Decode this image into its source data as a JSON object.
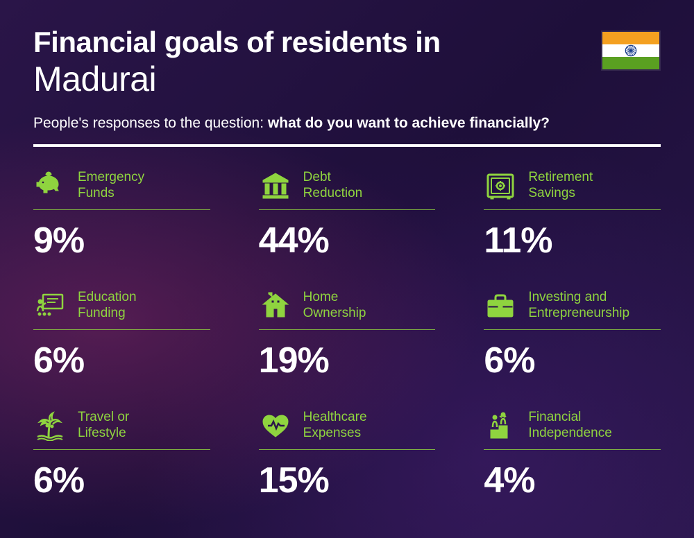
{
  "header": {
    "title_prefix": "Financial goals of residents in",
    "city": "Madurai",
    "subtitle_lead": "People's responses to the question: ",
    "subtitle_question": "what do you want to achieve financially?"
  },
  "flag": {
    "saffron": "#f4a020",
    "white": "#ffffff",
    "green": "#5aa021",
    "chakra": "#1a3e8c"
  },
  "styling": {
    "background_gradient": [
      "#2a1548",
      "#1e0f3a",
      "#28164a"
    ],
    "accent_glow": "#b43278",
    "title_color": "#ffffff",
    "title_prefix_fontsize": 42,
    "title_prefix_weight": 800,
    "city_fontsize": 50,
    "city_weight": 300,
    "subtitle_fontsize": 21,
    "subtitle_color": "#ffffff",
    "hr_color": "#ffffff",
    "hr_thickness": 4,
    "accent_color": "#8fd43f",
    "item_hr_color": "#8fd43f",
    "label_fontsize": 19,
    "percent_color": "#ffffff",
    "percent_fontsize": 52,
    "percent_weight": 800,
    "grid_columns": 3,
    "grid_rows": 3
  },
  "items": [
    {
      "icon": "piggy-bank",
      "label_l1": "Emergency",
      "label_l2": "Funds",
      "percent": "9%"
    },
    {
      "icon": "bank",
      "label_l1": "Debt",
      "label_l2": "Reduction",
      "percent": "44%"
    },
    {
      "icon": "safe",
      "label_l1": "Retirement",
      "label_l2": "Savings",
      "percent": "11%"
    },
    {
      "icon": "education",
      "label_l1": "Education",
      "label_l2": "Funding",
      "percent": "6%"
    },
    {
      "icon": "house",
      "label_l1": "Home",
      "label_l2": "Ownership",
      "percent": "19%"
    },
    {
      "icon": "briefcase",
      "label_l1": "Investing and",
      "label_l2": "Entrepreneurship",
      "percent": "6%"
    },
    {
      "icon": "palm",
      "label_l1": "Travel or",
      "label_l2": "Lifestyle",
      "percent": "6%"
    },
    {
      "icon": "heart",
      "label_l1": "Healthcare",
      "label_l2": "Expenses",
      "percent": "15%"
    },
    {
      "icon": "podium",
      "label_l1": "Financial",
      "label_l2": "Independence",
      "percent": "4%"
    }
  ]
}
